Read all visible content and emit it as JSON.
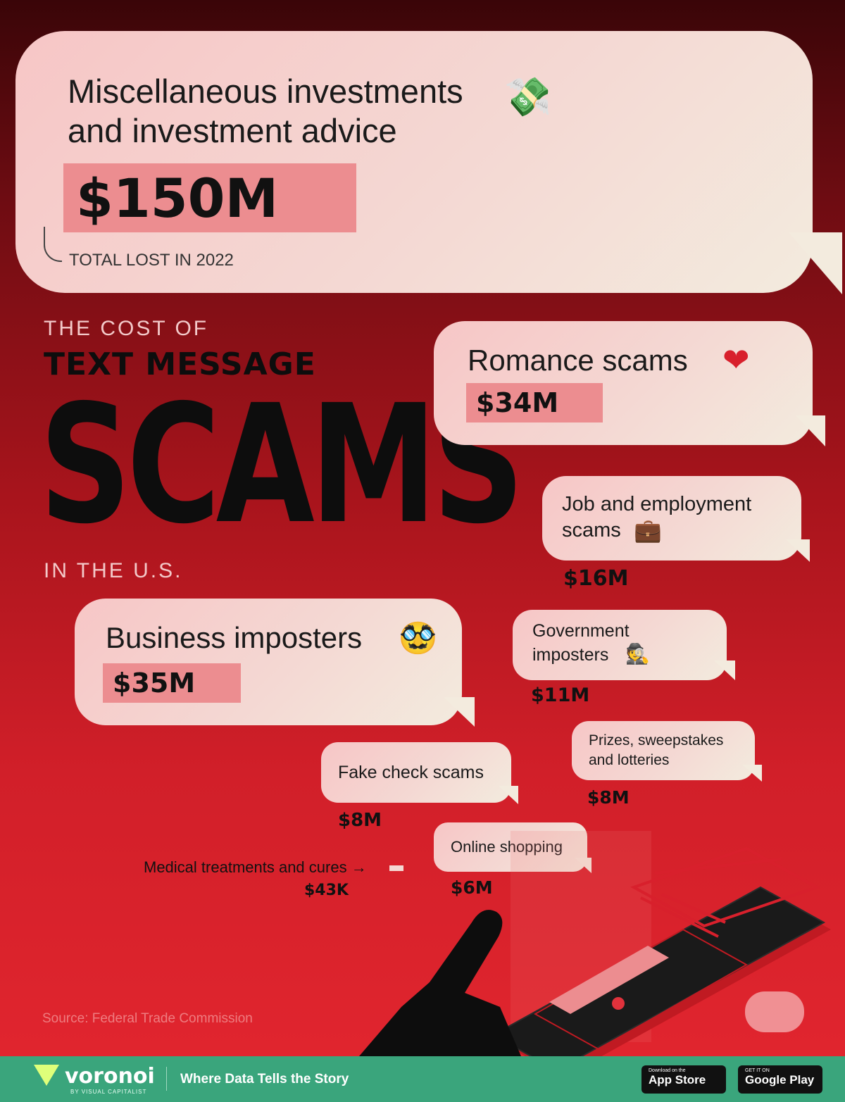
{
  "chart_data": {
    "type": "bar",
    "title": "THE COST OF TEXT MESSAGE SCAMS IN THE U.S.",
    "categories": [
      "Miscellaneous investments and investment advice",
      "Business imposters",
      "Romance scams",
      "Job and employment scams",
      "Government imposters",
      "Fake check scams",
      "Prizes, sweepstakes and lotteries",
      "Online shopping",
      "Medical treatments and cures"
    ],
    "values": [
      150000000,
      35000000,
      34000000,
      16000000,
      11000000,
      8000000,
      8000000,
      6000000,
      43000
    ],
    "value_labels": [
      "$150M",
      "$35M",
      "$34M",
      "$16M",
      "$11M",
      "$8M",
      "$8M",
      "$6M",
      "$43K"
    ],
    "annotation": "TOTAL LOST IN 2022",
    "source": "Source: Federal Trade Commission"
  },
  "title": {
    "line1": "THE COST OF",
    "line2": "TEXT MESSAGE",
    "line3": "SCAMS",
    "line4": "IN THE U.S."
  },
  "bubbles": {
    "invest": {
      "line1": "Miscellaneous investments",
      "line2": "and investment advice",
      "amount": "$150M",
      "note": "TOTAL LOST IN 2022",
      "emoji": "💸"
    },
    "romance": {
      "label": "Romance scams",
      "amount": "$34M",
      "emoji": "❤"
    },
    "job": {
      "line1": "Job and employment",
      "line2": "scams",
      "amount": "$16M",
      "emoji": "💼"
    },
    "business": {
      "label": "Business imposters",
      "amount": "$35M",
      "emoji": "🥸"
    },
    "government": {
      "line1": "Government",
      "line2": "imposters",
      "amount": "$11M",
      "emoji": "🕵"
    },
    "prizes": {
      "line1": "Prizes, sweepstakes",
      "line2": "and lotteries",
      "amount": "$8M"
    },
    "fakecheck": {
      "label": "Fake check scams",
      "amount": "$8M"
    },
    "shopping": {
      "label": "Online shopping",
      "amount": "$6M"
    },
    "medical": {
      "label": "Medical treatments and cures →",
      "amount": "$43K"
    }
  },
  "footer": {
    "brand": "voronoi",
    "brand_sub": "BY VISUAL CAPITALIST",
    "tagline": "Where Data Tells the Story",
    "appstore_small": "Download on the",
    "appstore": "App Store",
    "googleplay_small": "GET IT ON",
    "googleplay": "Google Play"
  },
  "colors": {
    "bubble": "#f4d8d3",
    "amount_highlight": "#ec8d90",
    "footer": "#3aa57c"
  }
}
